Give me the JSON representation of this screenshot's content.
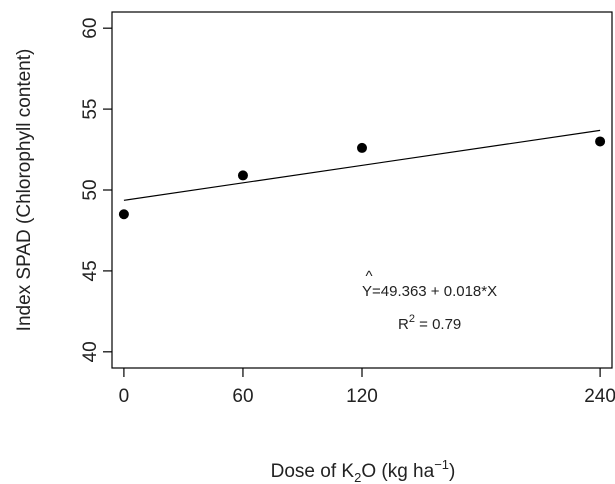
{
  "chart_data": {
    "type": "scatter",
    "title": "",
    "x_ticks": [
      0,
      60,
      120,
      240
    ],
    "y_ticks": [
      40,
      45,
      50,
      55,
      60
    ],
    "xlim": [
      -6,
      246
    ],
    "ylim": [
      39,
      61
    ],
    "grid": false,
    "legend": "none",
    "points": [
      {
        "x": 0,
        "y": 48.5
      },
      {
        "x": 60,
        "y": 50.9
      },
      {
        "x": 120,
        "y": 52.6
      },
      {
        "x": 240,
        "y": 53.0
      }
    ],
    "fit": {
      "intercept": 49.363,
      "slope": 0.018,
      "x_from": 0,
      "x_to": 240
    },
    "xlabel": {
      "main": "Dose of K",
      "sub": "2",
      "mid": "O (kg ha",
      "sup": "−1",
      "end": ")"
    },
    "ylabel": "Index  SPAD  (Chlorophyll content)",
    "annotation": {
      "hat": "^",
      "equation": "Y=49.363 + 0.018*X",
      "r2_main": "R",
      "r2_sup": "2",
      "r2_rest": " = 0.79"
    },
    "colors": {
      "ink": "#000000",
      "text": "#222222"
    }
  }
}
